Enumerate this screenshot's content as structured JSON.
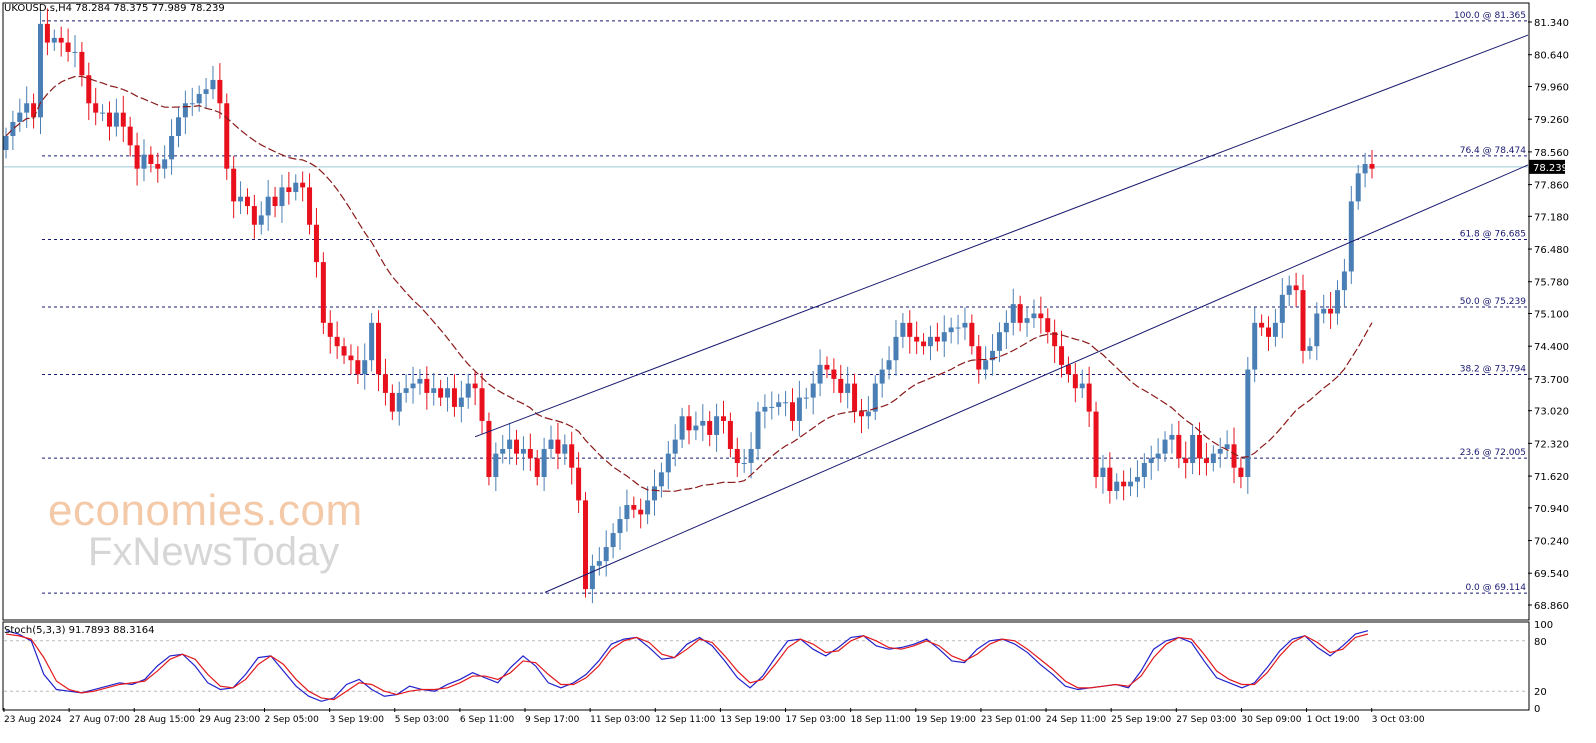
{
  "header": {
    "symbol_line": "UKOUSD.s,H4  78.284 78.375 77.989 78.239",
    "stoch_line": "Stoch(5,3,3) 91.7893 88.3164"
  },
  "watermark": {
    "line1": "economies.com",
    "line2": "FxNewsToday"
  },
  "colors": {
    "bull": "#4a7fb5",
    "bear": "#e8101c",
    "ma": "#8b1a1a",
    "channel": "#191970",
    "fib": "#191970",
    "price_line": "#9cc9d6",
    "stoch_main": "#2222cc",
    "stoch_signal": "#e31a1c"
  },
  "chart_data": [
    {
      "type": "candlestick",
      "title": "UKOUSD.s,H4",
      "ylim": [
        68.86,
        81.34
      ],
      "y_ticks": [
        "81.340",
        "80.640",
        "79.960",
        "79.260",
        "78.560",
        "77.860",
        "77.180",
        "76.480",
        "75.780",
        "75.100",
        "74.400",
        "73.700",
        "73.020",
        "72.320",
        "71.620",
        "70.940",
        "70.240",
        "69.540",
        "68.860"
      ],
      "x_ticks": [
        "23 Aug 2024",
        "27 Aug 07:00",
        "28 Aug 15:00",
        "29 Aug 23:00",
        "2 Sep 05:00",
        "3 Sep 19:00",
        "5 Sep 03:00",
        "6 Sep 11:00",
        "9 Sep 17:00",
        "11 Sep 03:00",
        "12 Sep 11:00",
        "13 Sep 19:00",
        "17 Sep 03:00",
        "18 Sep 11:00",
        "19 Sep 19:00",
        "23 Sep 01:00",
        "24 Sep 11:00",
        "25 Sep 19:00",
        "27 Sep 03:00",
        "30 Sep 09:00",
        "1 Oct 19:00",
        "3 Oct 03:00"
      ],
      "last_price": "78.239",
      "fibonacci_levels": [
        {
          "label": "100.0 @ 81.365",
          "value": 81.365
        },
        {
          "label": "76.4 @ 78.474",
          "value": 78.474
        },
        {
          "label": "61.8 @ 76.685",
          "value": 76.685
        },
        {
          "label": "50.0 @ 75.239",
          "value": 75.239
        },
        {
          "label": "38.2 @ 73.794",
          "value": 73.794
        },
        {
          "label": "23.6 @ 72.005",
          "value": 72.005
        },
        {
          "label": "0.0 @ 69.114",
          "value": 69.114
        }
      ],
      "series_close": [
        78.9,
        79.2,
        79.4,
        79.6,
        79.3,
        81.3,
        80.9,
        81.0,
        80.9,
        80.7,
        80.7,
        80.2,
        79.6,
        79.4,
        79.4,
        79.1,
        79.4,
        79.1,
        78.7,
        78.2,
        78.5,
        78.3,
        78.2,
        78.4,
        78.9,
        79.3,
        79.6,
        79.6,
        79.8,
        79.9,
        80.1,
        79.6,
        78.2,
        77.5,
        77.6,
        77.4,
        77.0,
        77.2,
        77.6,
        77.4,
        77.8,
        77.7,
        77.9,
        77.8,
        77.0,
        76.2,
        74.9,
        74.6,
        74.4,
        74.2,
        74.1,
        73.8,
        74.1,
        74.9,
        73.8,
        73.4,
        73.0,
        73.4,
        73.5,
        73.6,
        73.7,
        73.4,
        73.5,
        73.3,
        73.5,
        73.1,
        73.3,
        73.6,
        73.5,
        72.8,
        71.6,
        72.1,
        72.2,
        72.4,
        72.1,
        72.2,
        72.0,
        71.6,
        72.2,
        72.4,
        72.1,
        72.3,
        71.8,
        71.1,
        69.2,
        69.7,
        69.8,
        70.1,
        70.4,
        70.7,
        71.0,
        70.9,
        70.8,
        71.1,
        71.4,
        71.7,
        72.1,
        72.4,
        72.9,
        72.6,
        72.7,
        72.8,
        72.5,
        72.9,
        72.8,
        72.2,
        71.9,
        71.9,
        72.2,
        73.0,
        73.1,
        73.1,
        73.2,
        73.2,
        72.8,
        73.3,
        73.3,
        73.6,
        74.0,
        73.9,
        73.7,
        73.4,
        73.6,
        73.0,
        72.9,
        73.0,
        73.6,
        73.9,
        74.1,
        74.6,
        74.9,
        74.6,
        74.5,
        74.4,
        74.6,
        74.5,
        74.7,
        74.8,
        74.8,
        74.9,
        74.4,
        73.9,
        74.1,
        74.3,
        74.7,
        74.9,
        75.3,
        74.9,
        75.0,
        75.1,
        75.0,
        74.7,
        74.4,
        74.0,
        73.8,
        73.5,
        73.6,
        73.0,
        71.6,
        71.8,
        71.3,
        71.5,
        71.4,
        71.5,
        71.6,
        71.9,
        72.0,
        72.1,
        72.4,
        72.5,
        72.0,
        71.9,
        72.5,
        72.0,
        71.9,
        72.1,
        72.2,
        72.3,
        71.8,
        71.6,
        73.9,
        74.9,
        74.8,
        74.6,
        74.9,
        75.5,
        75.7,
        75.6,
        74.3,
        74.4,
        75.1,
        75.2,
        75.1,
        75.6,
        76.0,
        77.5,
        78.1,
        78.3,
        78.2
      ]
    },
    {
      "type": "line",
      "title": "Stoch(5,3,3) 91.7893 88.3164",
      "ylim": [
        0,
        100
      ],
      "y_ticks": [
        "100",
        "80",
        "20",
        "0"
      ],
      "series": [
        {
          "name": "Main",
          "values": [
            92,
            88,
            80,
            40,
            22,
            20,
            18,
            22,
            26,
            30,
            28,
            34,
            50,
            62,
            64,
            50,
            30,
            22,
            24,
            40,
            60,
            62,
            44,
            26,
            14,
            8,
            12,
            28,
            34,
            22,
            14,
            16,
            26,
            22,
            20,
            28,
            34,
            42,
            36,
            30,
            48,
            62,
            50,
            30,
            24,
            30,
            40,
            56,
            76,
            82,
            84,
            72,
            58,
            60,
            76,
            84,
            74,
            56,
            36,
            24,
            38,
            60,
            80,
            82,
            70,
            62,
            72,
            84,
            86,
            74,
            70,
            72,
            76,
            82,
            70,
            56,
            54,
            70,
            80,
            82,
            76,
            66,
            52,
            40,
            26,
            22,
            24,
            26,
            28,
            24,
            44,
            70,
            80,
            84,
            78,
            56,
            36,
            30,
            24,
            30,
            48,
            68,
            82,
            86,
            72,
            62,
            74,
            88,
            92
          ]
        },
        {
          "name": "Signal",
          "values": [
            88,
            86,
            82,
            60,
            32,
            22,
            18,
            20,
            24,
            28,
            30,
            32,
            44,
            58,
            64,
            58,
            40,
            26,
            24,
            34,
            52,
            62,
            52,
            34,
            20,
            12,
            10,
            20,
            30,
            28,
            20,
            16,
            20,
            22,
            22,
            24,
            30,
            38,
            38,
            34,
            42,
            56,
            54,
            40,
            28,
            28,
            36,
            50,
            70,
            80,
            84,
            78,
            64,
            60,
            70,
            82,
            78,
            62,
            44,
            30,
            34,
            52,
            72,
            82,
            76,
            66,
            68,
            80,
            86,
            80,
            72,
            70,
            74,
            80,
            74,
            62,
            56,
            64,
            76,
            82,
            80,
            70,
            58,
            46,
            32,
            24,
            24,
            26,
            28,
            26,
            38,
            60,
            76,
            84,
            82,
            64,
            44,
            34,
            28,
            28,
            42,
            62,
            78,
            86,
            78,
            66,
            70,
            84,
            88
          ]
        }
      ]
    }
  ]
}
